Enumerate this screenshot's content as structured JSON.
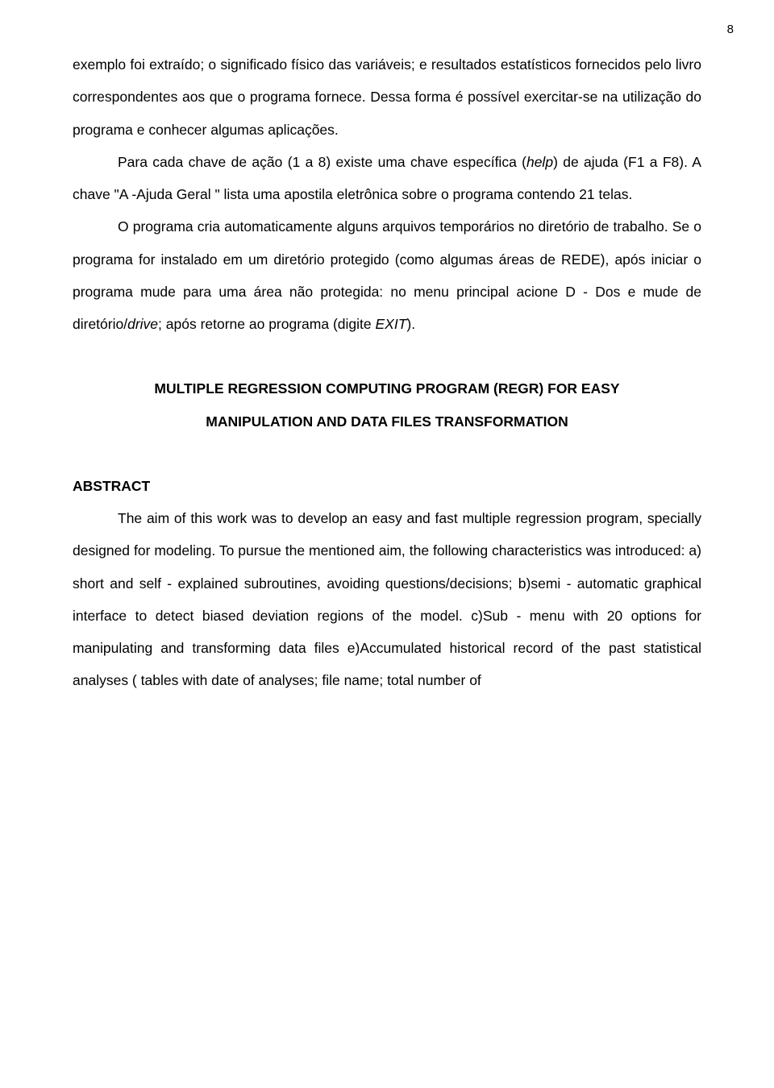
{
  "page_number": "8",
  "paragraphs": {
    "p1": "exemplo foi extraído; o significado físico das variáveis; e resultados estatísticos fornecidos pelo livro correspondentes aos que o programa fornece. Dessa forma é possível exercitar-se na utilização do programa e conhecer algumas aplicações.",
    "p2_part1": "Para cada chave de ação (1 a 8) existe uma chave específica (",
    "p2_help": "help",
    "p2_part2": ") de ajuda (F1 a F8). A chave \"A -Ajuda Geral \" lista uma apostila eletrônica sobre o programa contendo 21 telas.",
    "p3_part1": "O programa cria automaticamente alguns arquivos temporários no diretório de trabalho. Se o programa for instalado em um diretório protegido (como algumas áreas de REDE), após iniciar o programa mude para uma área não protegida:  no menu principal acione D - Dos e  mude de diretório/",
    "p3_drive": "drive",
    "p3_part2": "; após retorne  ao programa (digite ",
    "p3_exit": "EXIT",
    "p3_part3": ")."
  },
  "heading": {
    "line1": "MULTIPLE REGRESSION COMPUTING PROGRAM (REGR) FOR EASY",
    "line2": "MANIPULATION AND DATA FILES TRANSFORMATION"
  },
  "abstract": {
    "label": "ABSTRACT",
    "text": "The aim of this work was to develop an easy and fast multiple regression program, specially designed for modeling. To pursue the mentioned aim, the following characteristics was introduced: a) short and self - explained subroutines, avoiding questions/decisions; b)semi - automatic graphical interface to detect biased deviation regions of the model. c)Sub - menu with 20 options for manipulating and transforming data files e)Accumulated historical record of the past statistical analyses ( tables with date of analyses; file name; total number of"
  }
}
